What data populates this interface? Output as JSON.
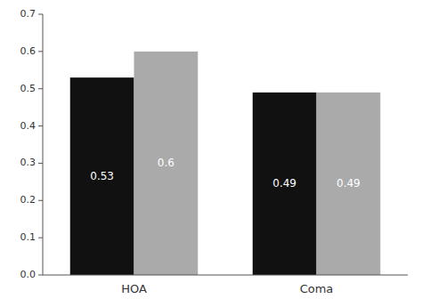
{
  "chart_data": {
    "type": "bar",
    "categories": [
      "HOA",
      "Coma"
    ],
    "series": [
      {
        "color": "#111111",
        "values": [
          0.53,
          0.49
        ]
      },
      {
        "color": "#aaaaaa",
        "values": [
          0.6,
          0.49
        ]
      }
    ],
    "ylim": [
      0,
      0.7
    ],
    "yticks": [
      {
        "value": 0,
        "label": "0.0"
      },
      0.1,
      0.2,
      0.3,
      0.4,
      0.5,
      0.6,
      0.7
    ],
    "grid": false,
    "data_labels": true
  }
}
